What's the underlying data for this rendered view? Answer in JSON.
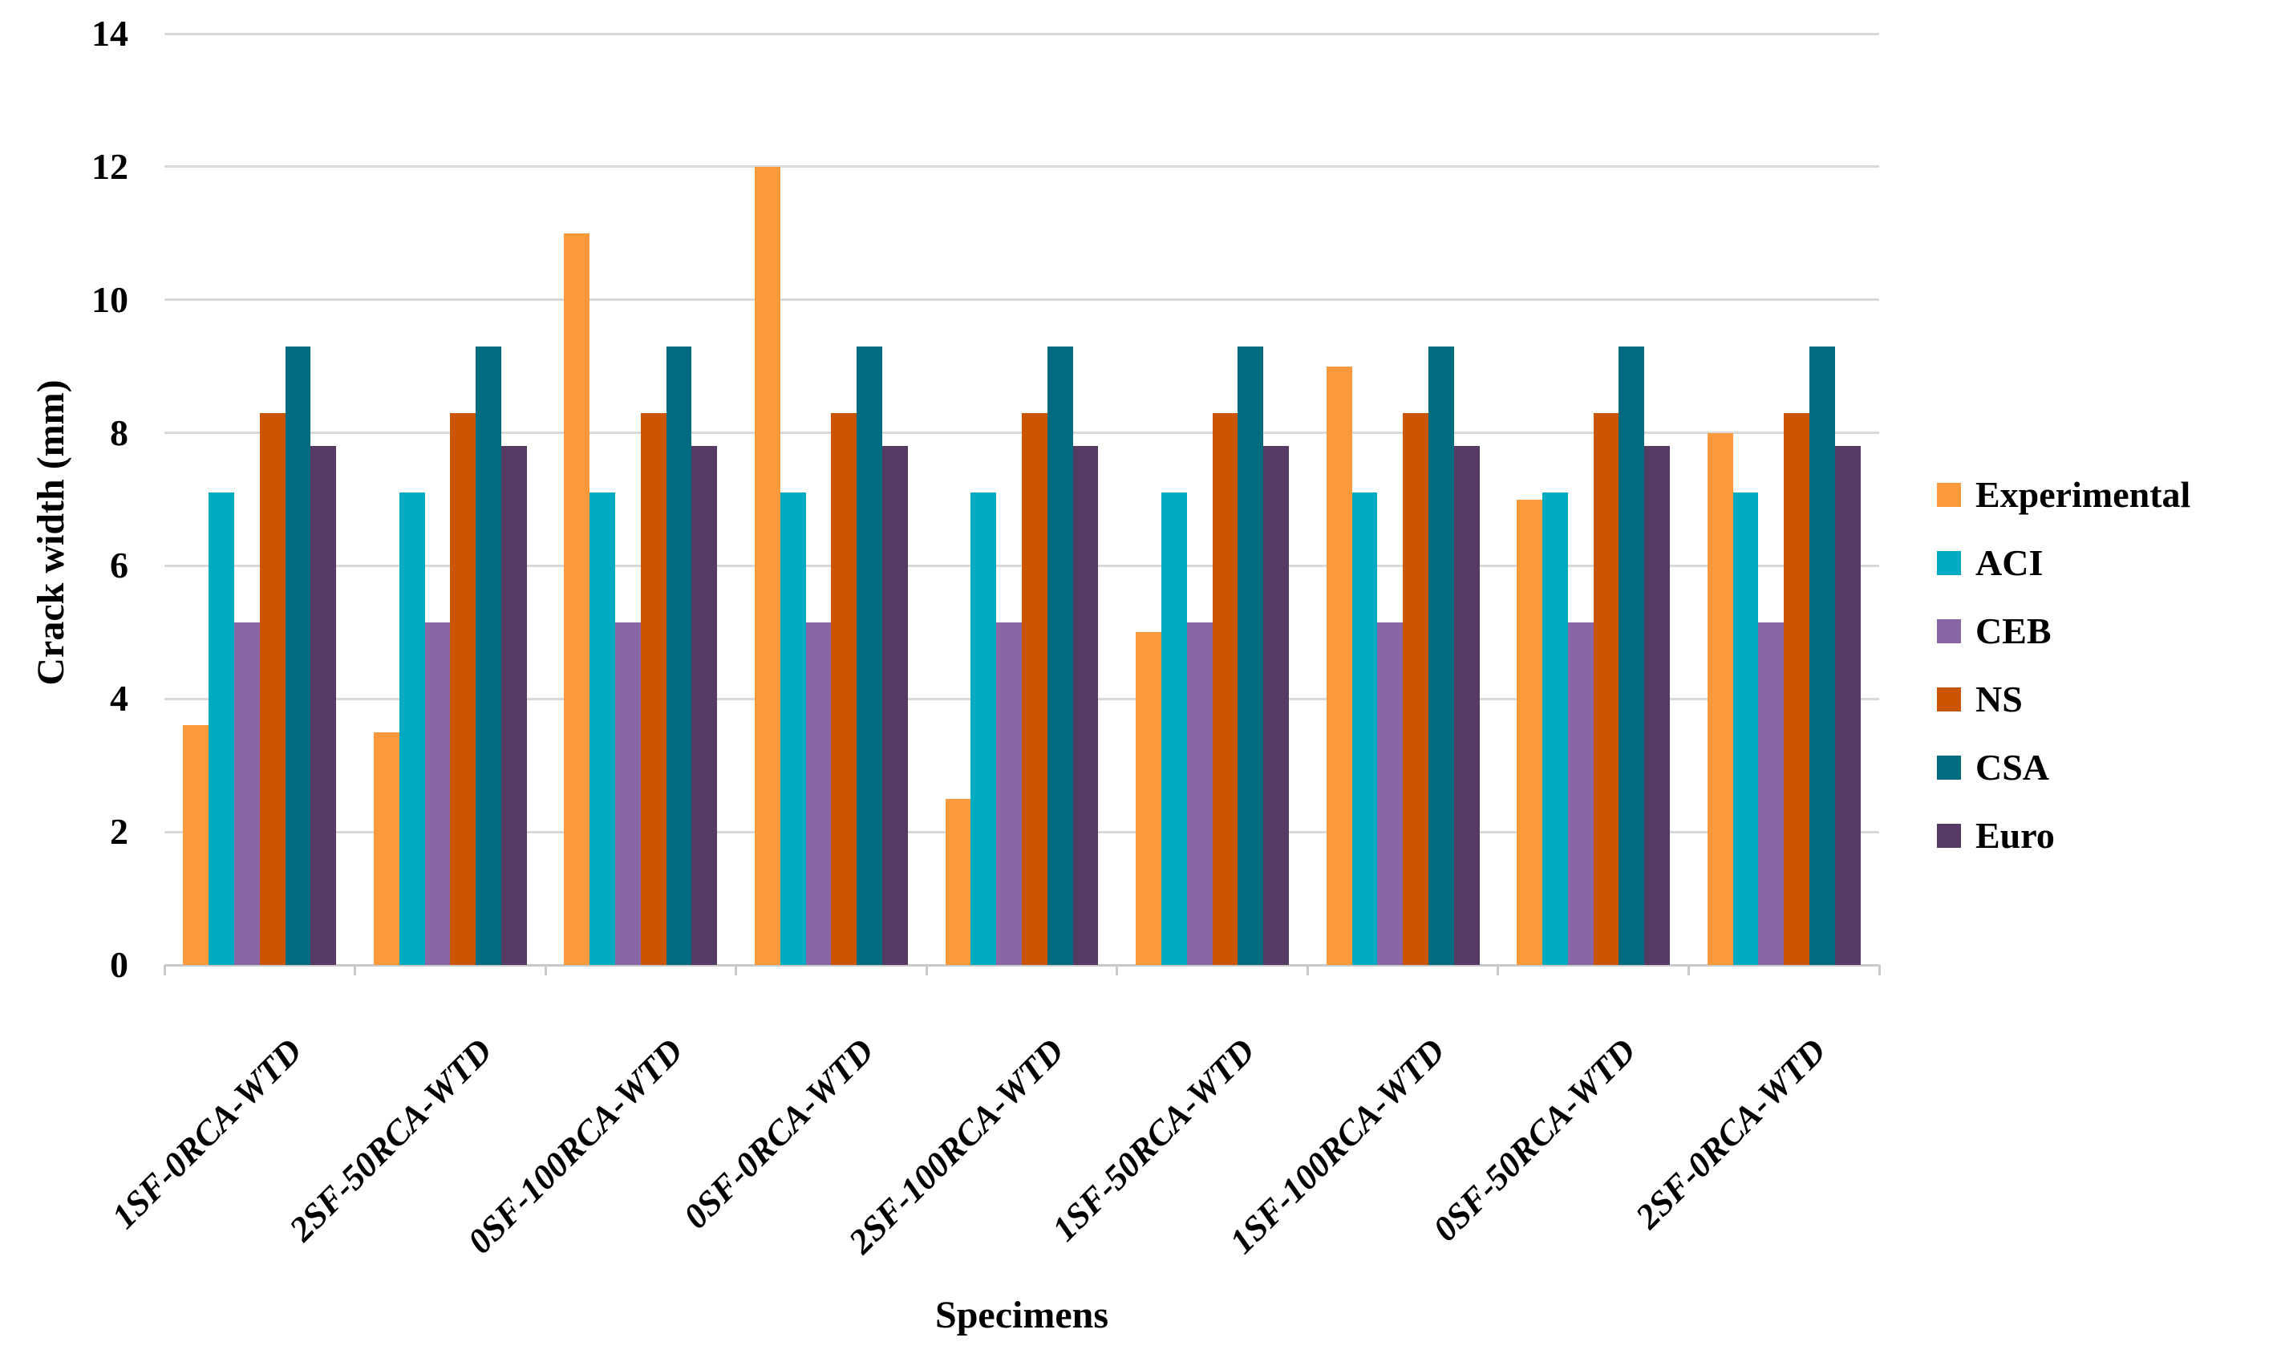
{
  "chart_data": {
    "type": "bar",
    "title": "",
    "xlabel": "Specimens",
    "ylabel": "Crack width (mm)",
    "ylim": [
      0,
      14
    ],
    "yticks": [
      0,
      2,
      4,
      6,
      8,
      10,
      12,
      14
    ],
    "grid": true,
    "legend_position": "right",
    "categories": [
      "1SF-0RCA-WTD",
      "2SF-50RCA-WTD",
      "0SF-100RCA-WTD",
      "0SF-0RCA-WTD",
      "2SF-100RCA-WTD",
      "1SF-50RCA-WTD",
      "1SF-100RCA-WTD",
      "0SF-50RCA-WTD",
      "2SF-0RCA-WTD"
    ],
    "series": [
      {
        "name": "Experimental",
        "color": "#FB9A3C",
        "values": [
          3.6,
          3.5,
          11,
          12,
          2.5,
          5,
          9,
          7,
          8
        ]
      },
      {
        "name": "ACI",
        "color": "#00ABC1",
        "values": [
          7.1,
          7.1,
          7.1,
          7.1,
          7.1,
          7.1,
          7.1,
          7.1,
          7.1
        ]
      },
      {
        "name": "CEB",
        "color": "#8A66A6",
        "values": [
          5.15,
          5.15,
          5.15,
          5.15,
          5.15,
          5.15,
          5.15,
          5.15,
          5.15
        ]
      },
      {
        "name": "NS",
        "color": "#CC5502",
        "values": [
          8.3,
          8.3,
          8.3,
          8.3,
          8.3,
          8.3,
          8.3,
          8.3,
          8.3
        ]
      },
      {
        "name": "CSA",
        "color": "#016C7F",
        "values": [
          9.3,
          9.3,
          9.3,
          9.3,
          9.3,
          9.3,
          9.3,
          9.3,
          9.3
        ]
      },
      {
        "name": "Euro",
        "color": "#553B64",
        "values": [
          7.8,
          7.8,
          7.8,
          7.8,
          7.8,
          7.8,
          7.8,
          7.8,
          7.8
        ]
      }
    ],
    "colors": {
      "gridline": "#D9D9D9",
      "axis": "#C9C9C9",
      "text": "#000000",
      "background": "#FFFFFF"
    }
  }
}
